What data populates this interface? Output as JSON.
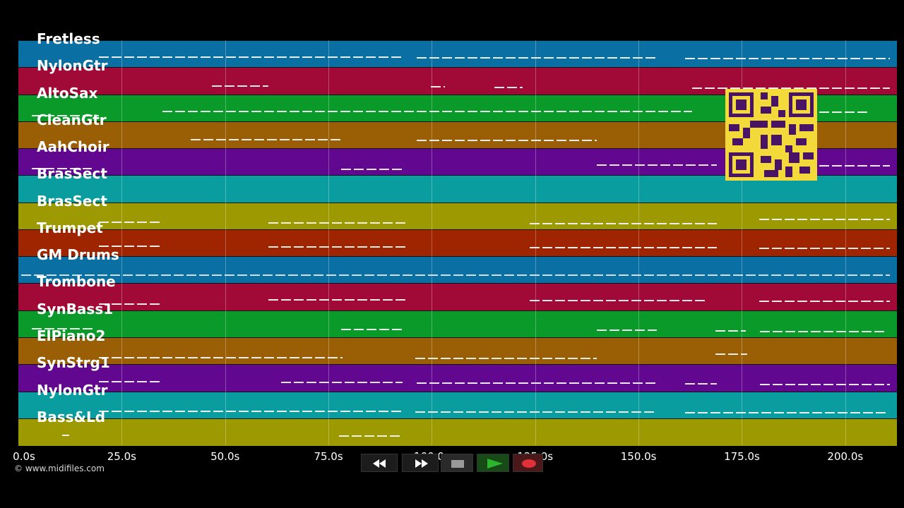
{
  "lanes": [
    {
      "label": "Fretless",
      "color": "#0a6fa3"
    },
    {
      "label": "NylonGtr",
      "color": "#a10a36"
    },
    {
      "label": "AltoSax",
      "color": "#0a9a2a"
    },
    {
      "label": "CleanGtr",
      "color": "#9a5f05"
    },
    {
      "label": "AahChoir",
      "color": "#62078f"
    },
    {
      "label": "BrasSect",
      "color": "#0a9da0"
    },
    {
      "label": "BrasSect",
      "color": "#9d9900"
    },
    {
      "label": "Trumpet",
      "color": "#9e2500"
    },
    {
      "label": "GM Drums",
      "color": "#0a6fa3"
    },
    {
      "label": "Trombone",
      "color": "#a10a36"
    },
    {
      "label": "SynBass1",
      "color": "#0a9a2a"
    },
    {
      "label": "ElPiano2",
      "color": "#9a5f05"
    },
    {
      "label": "SynStrg1",
      "color": "#62078f"
    },
    {
      "label": "NylonGtr",
      "color": "#0a9da0"
    },
    {
      "label": "Bass&Ld",
      "color": "#9d9900"
    }
  ],
  "timeline": {
    "ticks": [
      "0.0s",
      "25.0s",
      "50.0s",
      "75.0s",
      "100.0s",
      "125.0s",
      "150.0s",
      "175.0s",
      "200.0s"
    ],
    "tick_values_s": [
      0,
      25,
      50,
      75,
      100,
      125,
      150,
      175,
      200
    ],
    "visible_range_s": [
      0,
      212.5
    ]
  },
  "credit": "© www.midifiles.com",
  "qr_icon": "qr-code-icon",
  "transport": {
    "rewind_icon": "rewind-icon",
    "fast_forward_icon": "fast-forward-icon",
    "stop_icon": "stop-icon",
    "play_icon": "play-icon",
    "record_icon": "record-icon",
    "play_color": "#2db52d",
    "record_color": "#e0303a"
  }
}
